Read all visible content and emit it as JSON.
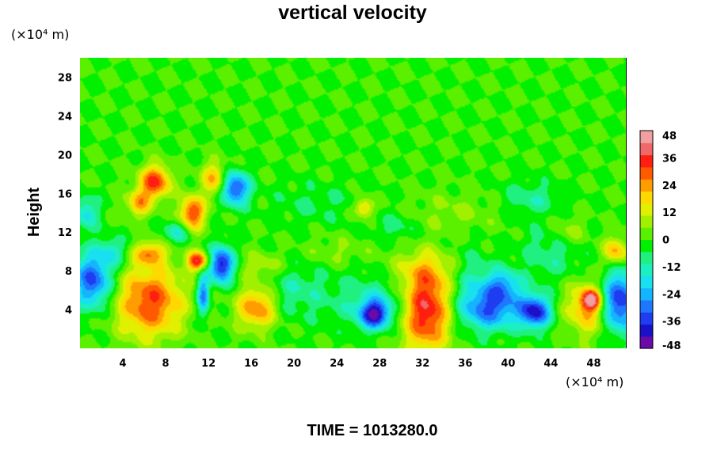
{
  "chart_data": {
    "type": "heatmap",
    "title": "vertical velocity",
    "ylabel": "Height",
    "x_unit": "(×10⁴ m)",
    "y_unit": "(×10⁴ m)",
    "time_label": "TIME = 1013280.0",
    "xlim": [
      0,
      51
    ],
    "ylim": [
      0,
      30
    ],
    "x_ticks": [
      4,
      8,
      12,
      16,
      20,
      24,
      28,
      32,
      36,
      40,
      44,
      48
    ],
    "y_ticks": [
      4,
      8,
      12,
      16,
      20,
      24,
      28
    ],
    "colorbar": {
      "range": [
        -48,
        48
      ],
      "ticks": [
        48,
        36,
        24,
        12,
        0,
        -12,
        -24,
        -36,
        -48
      ],
      "colors": [
        "#6a0aa8",
        "#1a10c8",
        "#1e3cf0",
        "#1e78ff",
        "#14b4ff",
        "#18e0f0",
        "#1cf0c0",
        "#20f080",
        "#00f000",
        "#5af000",
        "#a0f000",
        "#e0f000",
        "#ffd800",
        "#ff9c00",
        "#ff5a00",
        "#ff1e10",
        "#f06868",
        "#f0a0a0"
      ]
    },
    "field_features": [
      {
        "x": 6.5,
        "y": 4.8,
        "sx": 2.2,
        "sy": 2.6,
        "v": 32
      },
      {
        "x": 6.5,
        "y": 9.8,
        "sx": 1.0,
        "sy": 0.8,
        "v": 24
      },
      {
        "x": 1.2,
        "y": 7.0,
        "sx": 1.3,
        "sy": 2.0,
        "v": -34
      },
      {
        "x": 7.0,
        "y": 17.2,
        "sx": 1.0,
        "sy": 1.2,
        "v": 34
      },
      {
        "x": 5.5,
        "y": 15.0,
        "sx": 0.8,
        "sy": 1.0,
        "v": 22
      },
      {
        "x": 10.5,
        "y": 14.0,
        "sx": 0.8,
        "sy": 1.2,
        "v": 34
      },
      {
        "x": 12.5,
        "y": 17.5,
        "sx": 0.8,
        "sy": 1.2,
        "v": 22
      },
      {
        "x": 14.5,
        "y": 16.5,
        "sx": 0.9,
        "sy": 1.2,
        "v": -36
      },
      {
        "x": 11.0,
        "y": 9.0,
        "sx": 0.7,
        "sy": 0.7,
        "v": 36
      },
      {
        "x": 13.2,
        "y": 8.6,
        "sx": 0.8,
        "sy": 1.3,
        "v": -42
      },
      {
        "x": 11.5,
        "y": 5.5,
        "sx": 0.4,
        "sy": 1.5,
        "v": -30
      },
      {
        "x": 16.5,
        "y": 4.2,
        "sx": 1.3,
        "sy": 1.5,
        "v": 28
      },
      {
        "x": 17.0,
        "y": 8.5,
        "sx": 1.5,
        "sy": 1.0,
        "v": 10
      },
      {
        "x": 20.0,
        "y": 6.0,
        "sx": 2.0,
        "sy": 2.0,
        "v": -10
      },
      {
        "x": 26.5,
        "y": 14.5,
        "sx": 0.6,
        "sy": 0.7,
        "v": 22
      },
      {
        "x": 27.5,
        "y": 5.0,
        "sx": 3.0,
        "sy": 2.0,
        "v": -12
      },
      {
        "x": 27.5,
        "y": 3.5,
        "sx": 1.0,
        "sy": 1.0,
        "v": -38
      },
      {
        "x": 32.3,
        "y": 4.0,
        "sx": 1.6,
        "sy": 3.0,
        "v": 40
      },
      {
        "x": 32.0,
        "y": 8.0,
        "sx": 2.5,
        "sy": 1.5,
        "v": 10
      },
      {
        "x": 36.5,
        "y": 6.5,
        "sx": 1.5,
        "sy": 2.5,
        "v": -12
      },
      {
        "x": 38.5,
        "y": 4.0,
        "sx": 2.0,
        "sy": 1.5,
        "v": -28
      },
      {
        "x": 42.5,
        "y": 3.8,
        "sx": 1.0,
        "sy": 1.2,
        "v": -38
      },
      {
        "x": 39.5,
        "y": 6.5,
        "sx": 1.2,
        "sy": 1.2,
        "v": -22
      },
      {
        "x": 47.5,
        "y": 4.2,
        "sx": 1.5,
        "sy": 2.0,
        "v": 24
      },
      {
        "x": 47.7,
        "y": 5.0,
        "sx": 0.6,
        "sy": 0.7,
        "v": 34
      },
      {
        "x": 50.3,
        "y": 4.8,
        "sx": 1.3,
        "sy": 2.2,
        "v": -40
      },
      {
        "x": 50.0,
        "y": 10.0,
        "sx": 0.8,
        "sy": 1.0,
        "v": 24
      },
      {
        "x": 44.0,
        "y": 10.0,
        "sx": 2.0,
        "sy": 2.0,
        "v": -10
      },
      {
        "x": 0.6,
        "y": 14.0,
        "sx": 0.8,
        "sy": 1.2,
        "v": -18
      },
      {
        "x": 22.0,
        "y": 15.0,
        "sx": 3.0,
        "sy": 1.5,
        "v": -6
      },
      {
        "x": 35.0,
        "y": 14.0,
        "sx": 3.0,
        "sy": 1.5,
        "v": 6
      },
      {
        "x": 42.0,
        "y": 15.5,
        "sx": 2.0,
        "sy": 1.2,
        "v": -10
      },
      {
        "x": 3.0,
        "y": 10.0,
        "sx": 1.0,
        "sy": 1.0,
        "v": -14
      },
      {
        "x": 9.0,
        "y": 12.0,
        "sx": 0.8,
        "sy": 0.8,
        "v": -16
      },
      {
        "x": 24.0,
        "y": 10.0,
        "sx": 2.0,
        "sy": 1.0,
        "v": 6
      },
      {
        "x": 29.5,
        "y": 12.5,
        "sx": 1.5,
        "sy": 1.0,
        "v": -8
      },
      {
        "x": 45.5,
        "y": 12.0,
        "sx": 1.2,
        "sy": 1.2,
        "v": 10
      }
    ]
  }
}
